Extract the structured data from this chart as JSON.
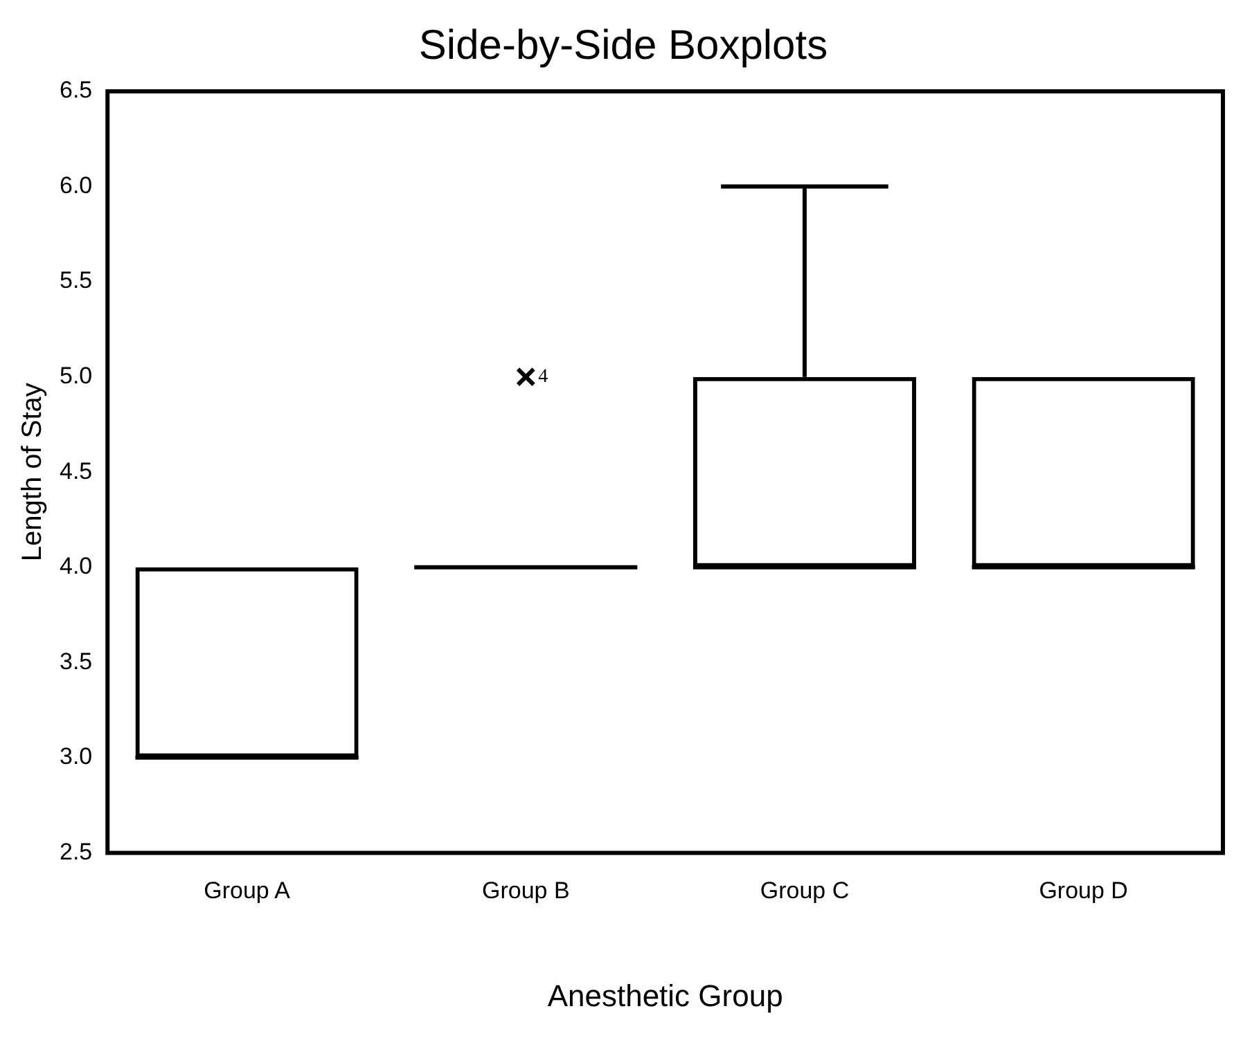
{
  "chart_data": {
    "type": "box",
    "title": "Side-by-Side Boxplots",
    "xlabel": "Anesthetic Group",
    "ylabel": "Length of Stay",
    "categories": [
      "Group A",
      "Group B",
      "Group C",
      "Group D"
    ],
    "boxes": [
      {
        "low": 3,
        "q1": 3,
        "median": 3,
        "q3": 4,
        "high": 4
      },
      {
        "low": 4,
        "q1": 4,
        "median": 4,
        "q3": 4,
        "high": 4,
        "outliers": [
          5
        ]
      },
      {
        "low": 4,
        "q1": 4,
        "median": 4,
        "q3": 5,
        "high": 6
      },
      {
        "low": 4,
        "q1": 4,
        "median": 4,
        "q3": 5,
        "high": 5
      }
    ],
    "color": "#000000",
    "marker": "cross",
    "grid": false,
    "legend": false,
    "ylim": [
      2.5,
      6.5
    ],
    "yticks": [
      {
        "value": 2.5,
        "label": "2.5"
      },
      {
        "value": 3,
        "label": "3.0"
      },
      {
        "value": 3.5,
        "label": "3.5"
      },
      {
        "value": 4,
        "label": "4.0"
      },
      {
        "value": 4.5,
        "label": "4.5"
      },
      {
        "value": 5,
        "label": "5.0"
      },
      {
        "value": 5.5,
        "label": "5.5"
      },
      {
        "value": 6,
        "label": "6.0"
      },
      {
        "value": 6.5,
        "label": "6.5"
      }
    ],
    "annotations": [
      "4"
    ]
  }
}
